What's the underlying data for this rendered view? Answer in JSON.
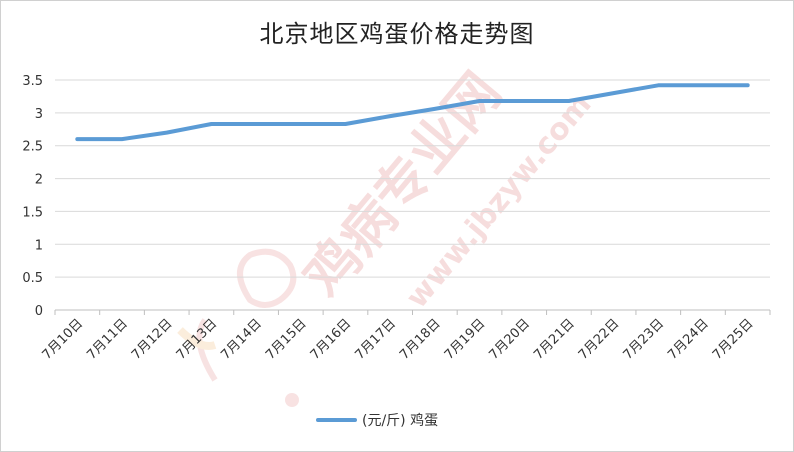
{
  "chart_data": {
    "type": "line",
    "title": "北京地区鸡蛋价格走势图",
    "xlabel": "",
    "ylabel": "",
    "categories": [
      "7月10日",
      "7月11日",
      "7月12日",
      "7月13日",
      "7月14日",
      "7月15日",
      "7月16日",
      "7月17日",
      "7月18日",
      "7月19日",
      "7月20日",
      "7月21日",
      "7月22日",
      "7月23日",
      "7月24日",
      "7月25日"
    ],
    "series": [
      {
        "name": "(元/斤) 鸡蛋",
        "values": [
          2.6,
          2.6,
          2.7,
          2.83,
          2.83,
          2.83,
          2.83,
          2.95,
          3.06,
          3.18,
          3.18,
          3.18,
          3.3,
          3.42,
          3.42,
          3.42
        ]
      }
    ],
    "ylim": [
      0,
      3.5
    ],
    "yticks": [
      0,
      0.5,
      1,
      1.5,
      2,
      2.5,
      3,
      3.5
    ],
    "ytick_labels": [
      "0",
      "0.5",
      "1",
      "1.5",
      "2",
      "2.5",
      "3",
      "3.5"
    ],
    "grid": true,
    "legend": "bottom",
    "colors": {
      "line": "#5b9bd5",
      "grid": "#d9d9d9",
      "axis": "#bfbfbf"
    }
  },
  "watermark": {
    "text1": "鸡病专业网",
    "text2": "www.jbzyw.com",
    "icon": "bird-logo-icon"
  }
}
